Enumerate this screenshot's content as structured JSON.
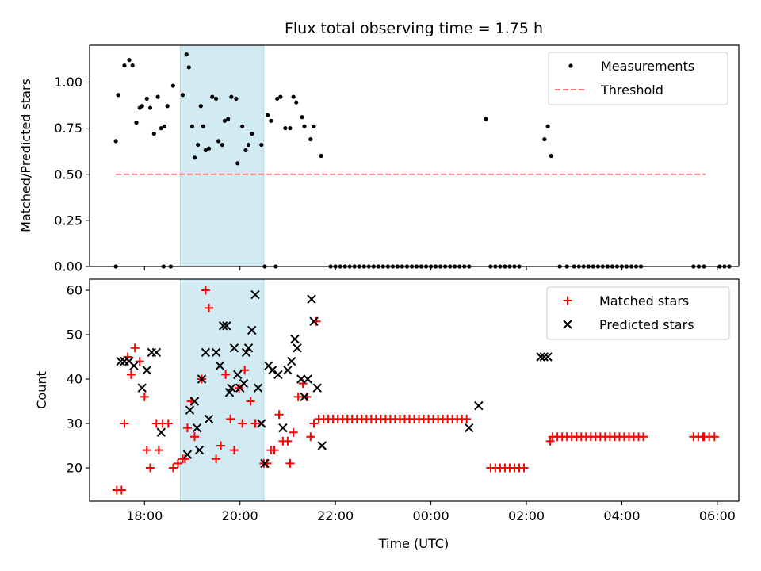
{
  "chart_data": [
    {
      "type": "scatter",
      "title": "Flux total observing time = 1.75 h",
      "xlabel": "",
      "ylabel": "Matched/Predicted stars",
      "xlim": [
        -1.15,
        12.45
      ],
      "ylim": [
        0,
        1.2
      ],
      "x_ticks": [
        0,
        2,
        4,
        6,
        8,
        10,
        12
      ],
      "y_ticks": [
        0.0,
        0.25,
        0.5,
        0.75,
        1.0
      ],
      "y_tick_labels": [
        "0.00",
        "0.25",
        "0.50",
        "0.75",
        "1.00"
      ],
      "grid": false,
      "legend": "top-right",
      "shaded_span": {
        "x0": 0.75,
        "x1": 2.5,
        "color": "#add8e6"
      },
      "series": [
        {
          "name": "Measurements",
          "marker": "dot",
          "color": "#000000",
          "x": [
            -0.6,
            -0.55,
            -0.42,
            -0.32,
            -0.25,
            -0.17,
            -0.1,
            -0.05,
            0.05,
            0.12,
            0.2,
            0.28,
            0.35,
            0.42,
            0.48,
            0.6,
            0.8,
            0.88,
            0.93,
            1.0,
            1.05,
            1.12,
            1.18,
            1.23,
            1.28,
            1.35,
            1.42,
            1.5,
            1.55,
            1.63,
            1.68,
            1.75,
            1.82,
            1.92,
            1.95,
            2.05,
            2.12,
            2.18,
            2.25,
            2.45,
            2.58,
            2.65,
            2.78,
            2.85,
            2.95,
            3.05,
            3.12,
            3.18,
            3.3,
            3.35,
            3.48,
            3.55,
            3.7,
            7.15,
            8.38,
            8.45,
            8.52
          ],
          "y": [
            0.68,
            0.93,
            1.09,
            1.12,
            1.09,
            0.78,
            0.86,
            0.87,
            0.91,
            0.86,
            0.72,
            0.92,
            0.75,
            0.76,
            0.87,
            0.98,
            0.93,
            1.15,
            1.08,
            0.76,
            0.59,
            0.66,
            0.87,
            0.76,
            0.63,
            0.64,
            0.92,
            0.91,
            0.68,
            0.66,
            0.79,
            0.8,
            0.92,
            0.91,
            0.56,
            0.76,
            0.63,
            0.66,
            0.72,
            0.66,
            0.82,
            0.79,
            0.91,
            0.92,
            0.75,
            0.75,
            0.92,
            0.89,
            0.81,
            0.76,
            0.69,
            0.76,
            0.6,
            0.8,
            0.69,
            0.76,
            0.6
          ]
        },
        {
          "name": "Threshold",
          "line_style": "dashed",
          "color": "#f08080",
          "x": [
            -0.6,
            11.75
          ],
          "y": [
            0.5,
            0.5
          ]
        }
      ],
      "zero_runs": [
        [
          -0.6,
          -0.5,
          0.15
        ],
        [
          0.4,
          0.55,
          0.15
        ],
        [
          2.52,
          2.75,
          0.23
        ],
        [
          3.9,
          6.85,
          0.1
        ],
        [
          7.25,
          7.9,
          0.1
        ],
        [
          8.7,
          8.85,
          0.15
        ],
        [
          9.0,
          10.45,
          0.1
        ],
        [
          11.5,
          11.72,
          0.11
        ],
        [
          12.05,
          12.25,
          0.1
        ]
      ]
    },
    {
      "type": "scatter",
      "title": "",
      "xlabel": "Time (UTC)",
      "ylabel": "Count",
      "xlim": [
        -1.15,
        12.45
      ],
      "ylim": [
        12.5,
        62.5
      ],
      "x_ticks": [
        0,
        2,
        4,
        6,
        8,
        10,
        12
      ],
      "x_tick_labels": [
        "18:00",
        "20:00",
        "22:00",
        "00:00",
        "02:00",
        "04:00",
        "06:00"
      ],
      "y_ticks": [
        20,
        30,
        40,
        50,
        60
      ],
      "grid": false,
      "legend": "top-right",
      "shaded_span": {
        "x0": 0.75,
        "x1": 2.5,
        "color": "#add8e6"
      },
      "series": [
        {
          "name": "Matched stars",
          "marker": "plus",
          "color": "#ff0000",
          "x": [
            -0.58,
            -0.48,
            -0.42,
            -0.35,
            -0.28,
            -0.2,
            -0.1,
            0.0,
            0.05,
            0.12,
            0.25,
            0.3,
            0.38,
            0.5,
            0.6,
            0.7,
            0.8,
            0.85,
            0.9,
            0.98,
            1.05,
            1.2,
            1.28,
            1.35,
            1.5,
            1.6,
            1.7,
            1.8,
            1.88,
            1.98,
            2.05,
            2.1,
            2.22,
            2.32,
            2.5,
            2.57,
            2.65,
            2.72,
            2.82,
            2.9,
            3.0,
            3.05,
            3.12,
            3.22,
            3.32,
            3.4,
            3.48,
            3.55,
            3.6,
            8.5
          ],
          "y": [
            15,
            15,
            30,
            45,
            41,
            47,
            44,
            36,
            24,
            20,
            30,
            24,
            30,
            30,
            20,
            21,
            22,
            22,
            29,
            35,
            27,
            40,
            60,
            56,
            22,
            25,
            41,
            31,
            24,
            38,
            30,
            42,
            35,
            30,
            21,
            21,
            24,
            24,
            32,
            26,
            26,
            21,
            28,
            36,
            39,
            36,
            27,
            30,
            53,
            26
          ],
          "runs": [
            [
              3.65,
              6.75,
              31,
              0.1
            ],
            [
              7.25,
              7.95,
              20,
              0.1
            ],
            [
              8.55,
              9.05,
              27,
              0.1
            ],
            [
              9.05,
              10.45,
              27,
              0.1
            ],
            [
              11.5,
              11.72,
              27,
              0.1
            ],
            [
              11.72,
              11.95,
              27,
              0.11
            ]
          ]
        },
        {
          "name": "Predicted stars",
          "marker": "x",
          "color": "#000000",
          "x": [
            -0.5,
            -0.42,
            -0.32,
            -0.22,
            -0.05,
            0.05,
            0.15,
            0.25,
            0.35,
            0.9,
            0.95,
            1.05,
            1.1,
            1.15,
            1.2,
            1.28,
            1.35,
            1.5,
            1.58,
            1.65,
            1.72,
            1.78,
            1.82,
            1.88,
            1.95,
            2.0,
            2.08,
            2.13,
            2.18,
            2.25,
            2.32,
            2.38,
            2.45,
            2.52,
            2.6,
            2.68,
            2.8,
            2.9,
            3.0,
            3.08,
            3.15,
            3.2,
            3.28,
            3.35,
            3.42,
            3.5,
            3.55,
            3.62,
            3.72,
            6.8,
            7.0,
            8.3,
            8.37,
            8.45
          ],
          "y": [
            44,
            44,
            44,
            43,
            38,
            42,
            46,
            46,
            28,
            23,
            33,
            35,
            29,
            24,
            40,
            46,
            31,
            46,
            43,
            52,
            52,
            37,
            38,
            47,
            41,
            38,
            39,
            46,
            47,
            51,
            59,
            38,
            30,
            21,
            43,
            42,
            41,
            29,
            42,
            44,
            49,
            47,
            40,
            36,
            40,
            58,
            53,
            38,
            25,
            29,
            34,
            45,
            45,
            45
          ]
        }
      ]
    }
  ]
}
